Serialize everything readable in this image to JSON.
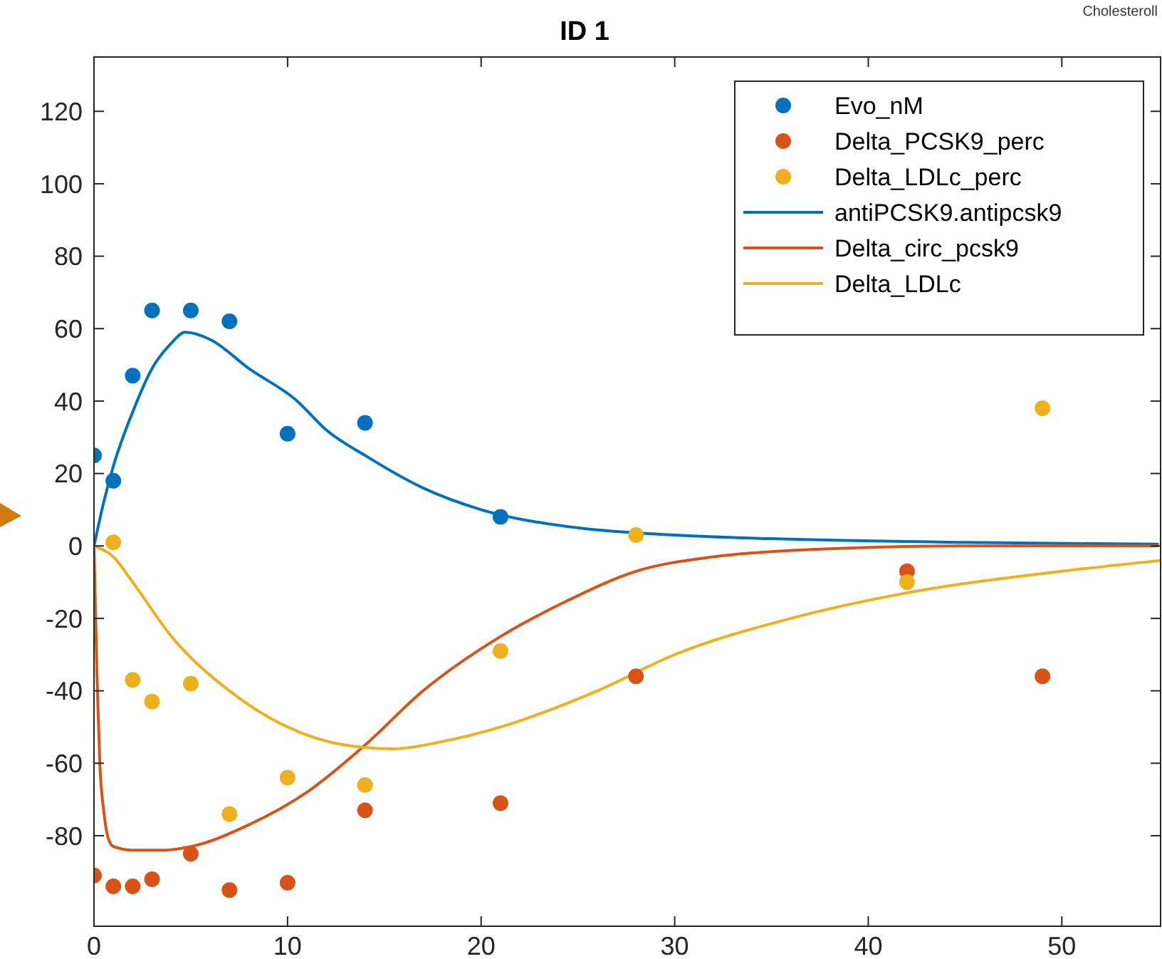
{
  "chart_data": {
    "type": "scatter",
    "title": "ID 1",
    "xlim": [
      0,
      55.1
    ],
    "ylim": [
      -105,
      135
    ],
    "xticks": [
      0,
      10,
      20,
      30,
      40,
      50
    ],
    "yticks": [
      -80,
      -60,
      -40,
      -20,
      0,
      20,
      40,
      60,
      80,
      100,
      120
    ],
    "grid": false,
    "legend": "top right",
    "annotations": [
      "Cholesteroll"
    ],
    "series": [
      {
        "name": "Evo_nM",
        "marker": "circle",
        "color": "#0072bd",
        "x": [
          0,
          1,
          2,
          3,
          5,
          7,
          10,
          14,
          21
        ],
        "values": [
          25,
          18,
          47,
          65,
          65,
          62,
          31,
          34,
          8
        ]
      },
      {
        "name": "Delta_PCSK9_perc",
        "marker": "circle",
        "color": "#d95319",
        "x": [
          0,
          1,
          2,
          3,
          5,
          7,
          10,
          14,
          21,
          28,
          42,
          49
        ],
        "values": [
          -91,
          -94,
          -94,
          -92,
          -85,
          -95,
          -93,
          -73,
          -71,
          -36,
          -7,
          -36
        ]
      },
      {
        "name": "Delta_LDLc_perc",
        "marker": "circle",
        "color": "#edb120",
        "x": [
          1,
          2,
          3,
          5,
          7,
          10,
          14,
          21,
          28,
          42,
          49
        ],
        "values": [
          1,
          -37,
          -43,
          -38,
          -74,
          -64,
          -66,
          -29,
          3,
          -10,
          38
        ]
      },
      {
        "name": "antiPCSK9.antipcsk9",
        "type": "line",
        "marker": "none",
        "color": "#0072bd",
        "x": [
          0,
          0.5,
          1,
          2,
          3,
          4,
          4.7,
          6,
          8,
          10.5,
          12,
          14,
          17,
          20,
          25,
          30,
          35,
          45,
          55
        ],
        "values": [
          0,
          12,
          22,
          37,
          49,
          56,
          59,
          57,
          49,
          40,
          32,
          25,
          16,
          10,
          5,
          3,
          2,
          1,
          0.5
        ]
      },
      {
        "name": "Delta_circ_pcsk9",
        "type": "line",
        "marker": "none",
        "color": "#d95319",
        "x": [
          0,
          0.15,
          0.3,
          0.5,
          0.7,
          1,
          2,
          3.5,
          5,
          8,
          11,
          14,
          17,
          21,
          24.5,
          28,
          32,
          37,
          45,
          55
        ],
        "values": [
          0,
          -35,
          -60,
          -73,
          -80,
          -83,
          -84,
          -84,
          -83,
          -77,
          -68,
          -55,
          -40,
          -25,
          -15,
          -7,
          -3,
          -1,
          0,
          0
        ]
      },
      {
        "name": "Delta_LDLc",
        "type": "line",
        "marker": "none",
        "color": "#edb120",
        "x": [
          0,
          1,
          2,
          4,
          7,
          10,
          13,
          15.5,
          18,
          21,
          26,
          30,
          36,
          43,
          50,
          55.1
        ],
        "values": [
          0,
          -3,
          -10,
          -25,
          -40,
          -50,
          -55,
          -56,
          -54,
          -50,
          -40,
          -30,
          -20,
          -12,
          -7,
          -4
        ]
      }
    ]
  }
}
